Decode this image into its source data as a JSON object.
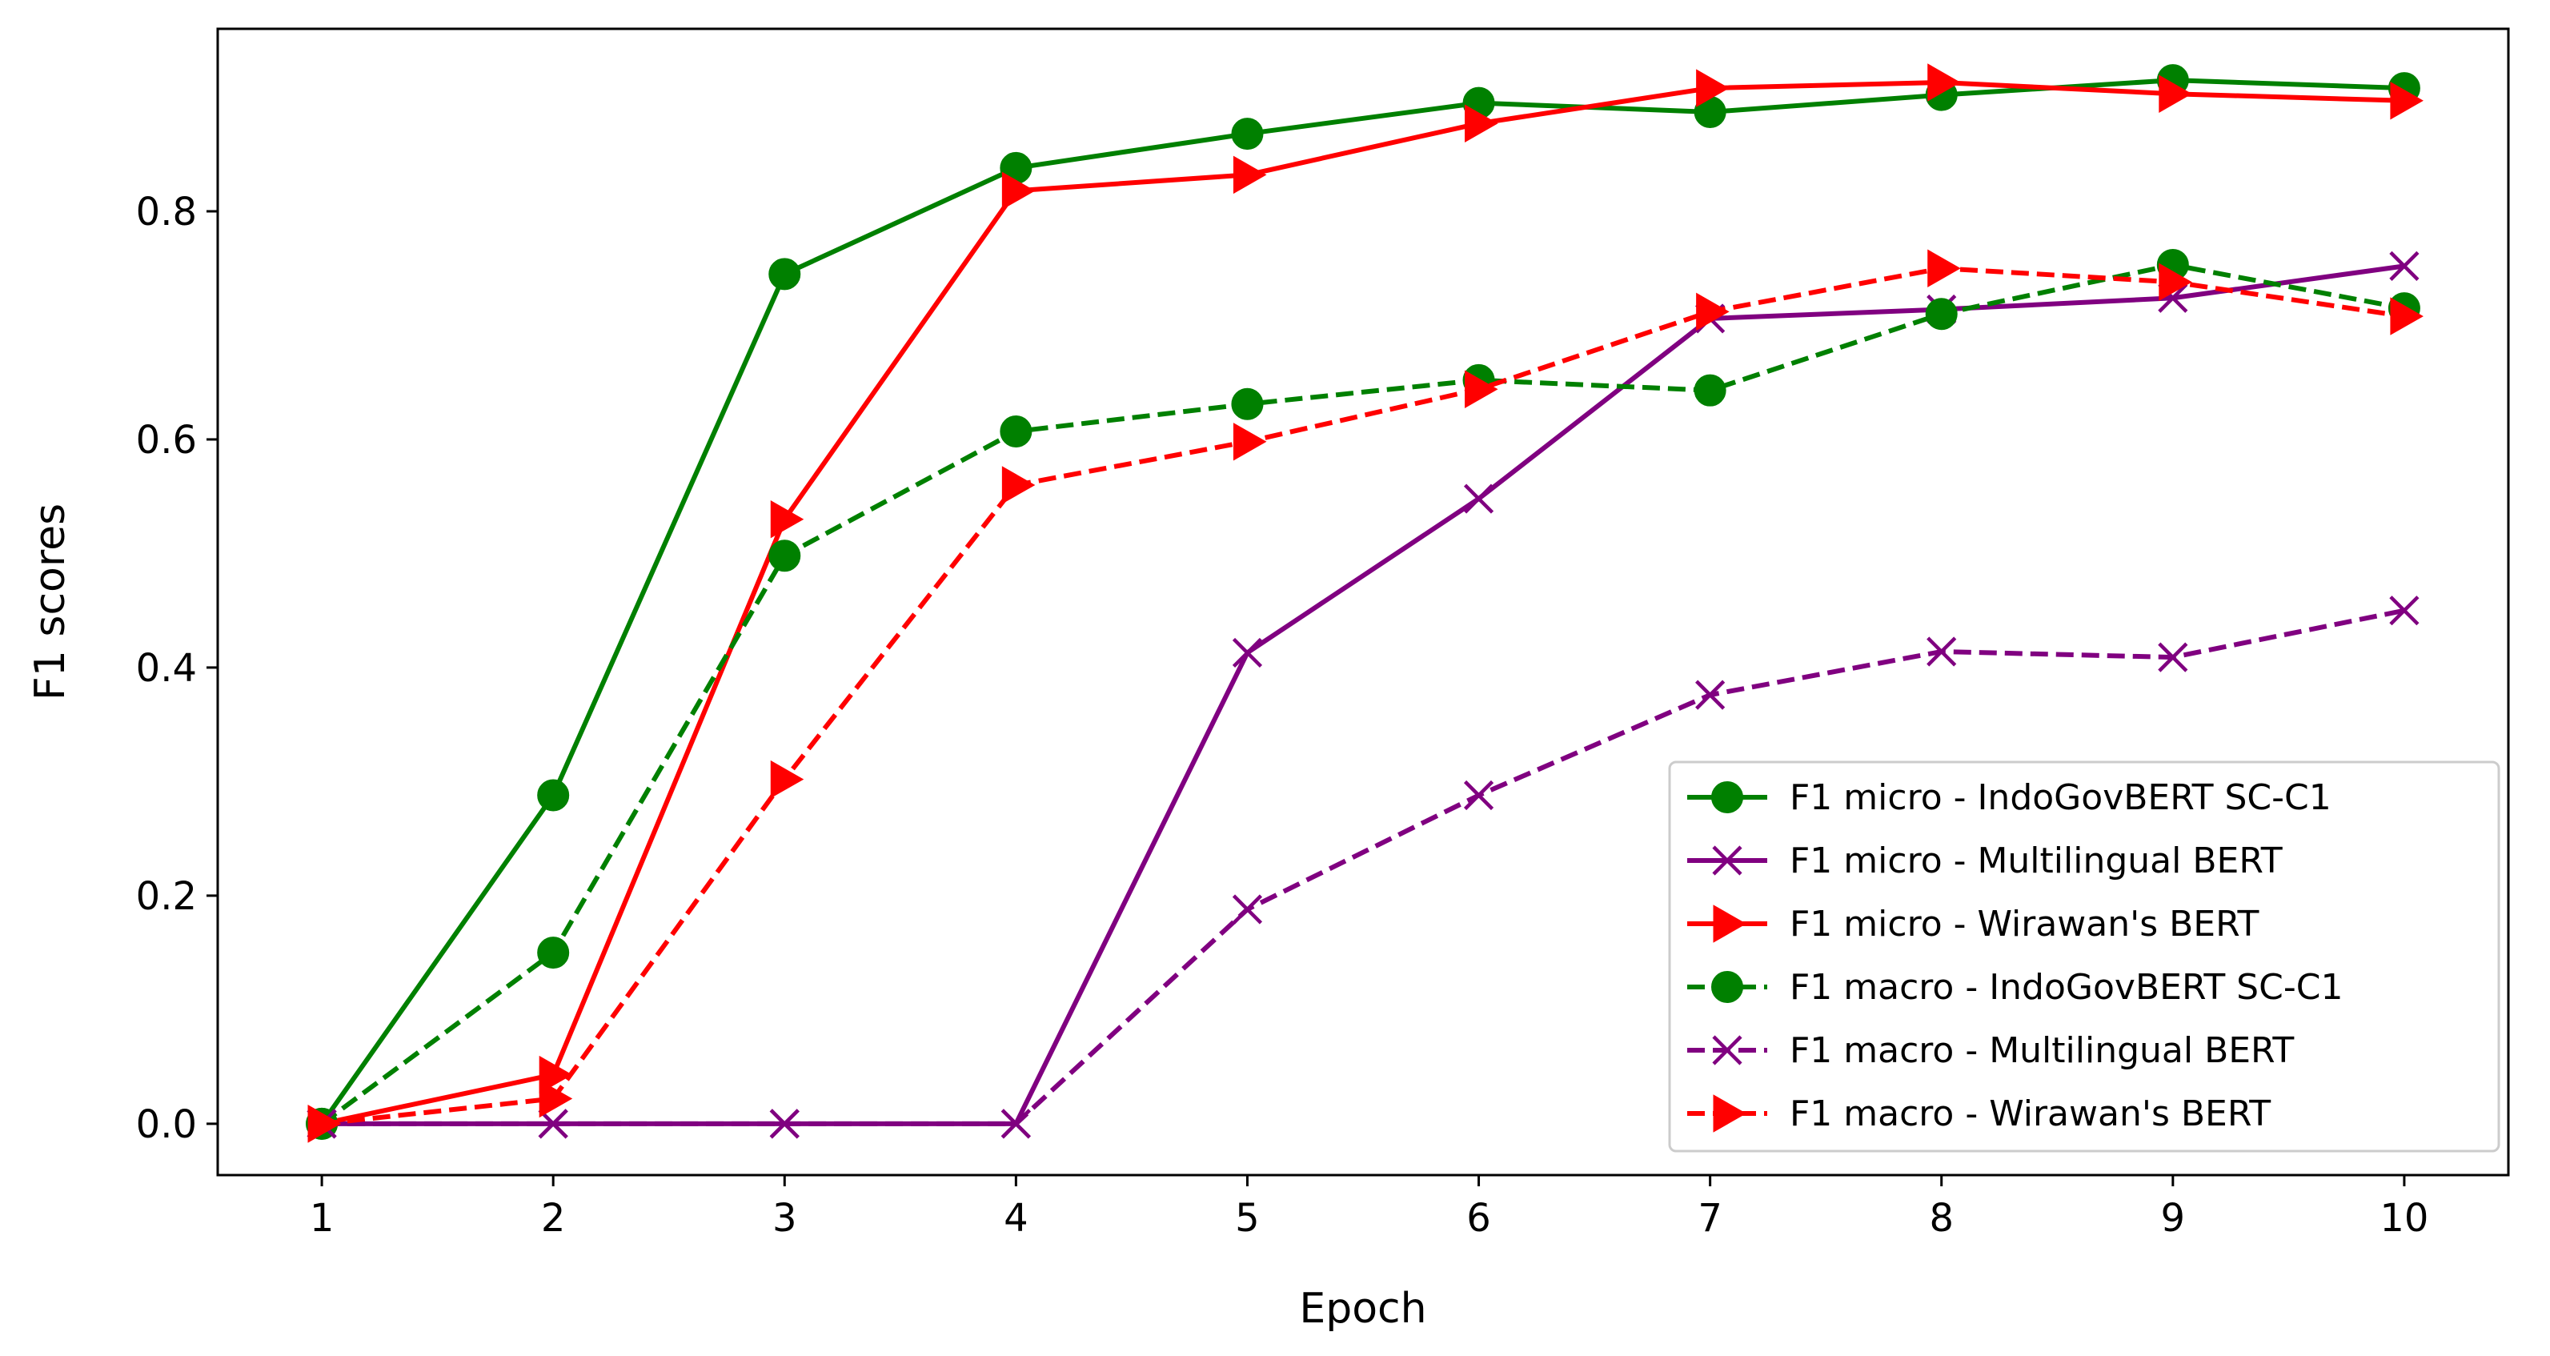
{
  "chart_data": {
    "type": "line",
    "title": "",
    "xlabel": "Epoch",
    "ylabel": "F1 scores",
    "x": [
      1,
      2,
      3,
      4,
      5,
      6,
      7,
      8,
      9,
      10
    ],
    "xlim": [
      0.55,
      10.45
    ],
    "ylim": [
      -0.045,
      0.96
    ],
    "xticks": [
      1,
      2,
      3,
      4,
      5,
      6,
      7,
      8,
      9,
      10
    ],
    "yticks": [
      0.0,
      0.2,
      0.4,
      0.6,
      0.8
    ],
    "ytick_labels": [
      "0.0",
      "0.2",
      "0.4",
      "0.6",
      "0.8"
    ],
    "grid": false,
    "legend_position": "lower-right",
    "series": [
      {
        "name": "F1 micro - IndoGovBERT SC-C1",
        "color": "#008000",
        "linestyle": "solid",
        "marker": "circle",
        "values": [
          0.0,
          0.288,
          0.745,
          0.838,
          0.868,
          0.895,
          0.887,
          0.902,
          0.915,
          0.908
        ]
      },
      {
        "name": "F1 micro - Multilingual BERT",
        "color": "#800080",
        "linestyle": "solid",
        "marker": "x",
        "values": [
          0.0,
          0.0,
          0.0,
          0.0,
          0.413,
          0.548,
          0.706,
          0.714,
          0.724,
          0.752
        ]
      },
      {
        "name": "F1 micro - Wirawan's BERT",
        "color": "#ff0000",
        "linestyle": "solid",
        "marker": "triangle-right",
        "values": [
          0.0,
          0.043,
          0.53,
          0.818,
          0.832,
          0.877,
          0.908,
          0.913,
          0.903,
          0.897
        ]
      },
      {
        "name": "F1 macro - IndoGovBERT SC-C1",
        "color": "#008000",
        "linestyle": "dashed",
        "marker": "circle",
        "values": [
          0.0,
          0.15,
          0.498,
          0.607,
          0.631,
          0.652,
          0.643,
          0.71,
          0.753,
          0.715
        ]
      },
      {
        "name": "F1 macro - Multilingual BERT",
        "color": "#800080",
        "linestyle": "dashed",
        "marker": "x",
        "values": [
          0.0,
          0.0,
          0.0,
          0.0,
          0.188,
          0.288,
          0.376,
          0.414,
          0.409,
          0.45
        ]
      },
      {
        "name": "F1 macro - Wirawan's BERT",
        "color": "#ff0000",
        "linestyle": "dashed",
        "marker": "triangle-right",
        "values": [
          0.0,
          0.022,
          0.302,
          0.56,
          0.598,
          0.644,
          0.712,
          0.75,
          0.738,
          0.708
        ]
      }
    ]
  }
}
